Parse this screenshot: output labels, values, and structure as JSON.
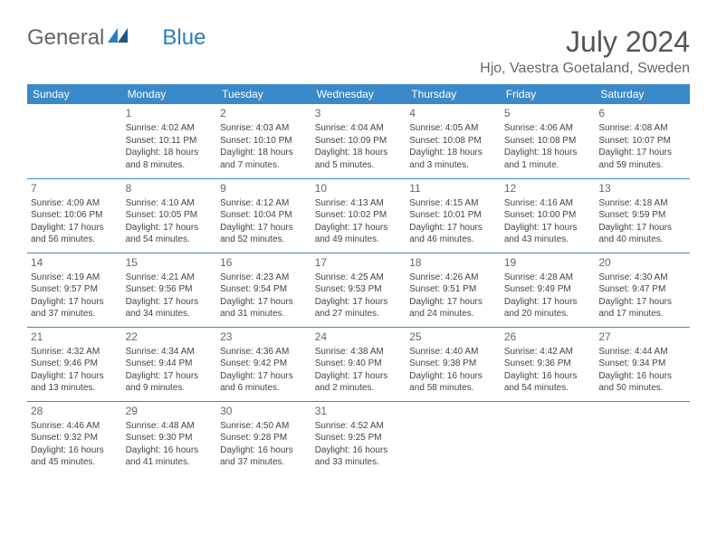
{
  "logo": {
    "part1": "General",
    "part2": "Blue"
  },
  "title": "July 2024",
  "location": "Hjo, Vaestra Goetaland, Sweden",
  "colors": {
    "header_bg": "#3a8ac9",
    "header_text": "#ffffff",
    "title_text": "#555555",
    "body_text": "#444444",
    "logo_gray": "#666666",
    "logo_blue": "#2a7fbf",
    "border": "#3a8ac9"
  },
  "dayHeaders": [
    "Sunday",
    "Monday",
    "Tuesday",
    "Wednesday",
    "Thursday",
    "Friday",
    "Saturday"
  ],
  "weeks": [
    [
      {},
      {
        "n": "1",
        "l1": "Sunrise: 4:02 AM",
        "l2": "Sunset: 10:11 PM",
        "l3": "Daylight: 18 hours",
        "l4": "and 8 minutes."
      },
      {
        "n": "2",
        "l1": "Sunrise: 4:03 AM",
        "l2": "Sunset: 10:10 PM",
        "l3": "Daylight: 18 hours",
        "l4": "and 7 minutes."
      },
      {
        "n": "3",
        "l1": "Sunrise: 4:04 AM",
        "l2": "Sunset: 10:09 PM",
        "l3": "Daylight: 18 hours",
        "l4": "and 5 minutes."
      },
      {
        "n": "4",
        "l1": "Sunrise: 4:05 AM",
        "l2": "Sunset: 10:08 PM",
        "l3": "Daylight: 18 hours",
        "l4": "and 3 minutes."
      },
      {
        "n": "5",
        "l1": "Sunrise: 4:06 AM",
        "l2": "Sunset: 10:08 PM",
        "l3": "Daylight: 18 hours",
        "l4": "and 1 minute."
      },
      {
        "n": "6",
        "l1": "Sunrise: 4:08 AM",
        "l2": "Sunset: 10:07 PM",
        "l3": "Daylight: 17 hours",
        "l4": "and 59 minutes."
      }
    ],
    [
      {
        "n": "7",
        "l1": "Sunrise: 4:09 AM",
        "l2": "Sunset: 10:06 PM",
        "l3": "Daylight: 17 hours",
        "l4": "and 56 minutes."
      },
      {
        "n": "8",
        "l1": "Sunrise: 4:10 AM",
        "l2": "Sunset: 10:05 PM",
        "l3": "Daylight: 17 hours",
        "l4": "and 54 minutes."
      },
      {
        "n": "9",
        "l1": "Sunrise: 4:12 AM",
        "l2": "Sunset: 10:04 PM",
        "l3": "Daylight: 17 hours",
        "l4": "and 52 minutes."
      },
      {
        "n": "10",
        "l1": "Sunrise: 4:13 AM",
        "l2": "Sunset: 10:02 PM",
        "l3": "Daylight: 17 hours",
        "l4": "and 49 minutes."
      },
      {
        "n": "11",
        "l1": "Sunrise: 4:15 AM",
        "l2": "Sunset: 10:01 PM",
        "l3": "Daylight: 17 hours",
        "l4": "and 46 minutes."
      },
      {
        "n": "12",
        "l1": "Sunrise: 4:16 AM",
        "l2": "Sunset: 10:00 PM",
        "l3": "Daylight: 17 hours",
        "l4": "and 43 minutes."
      },
      {
        "n": "13",
        "l1": "Sunrise: 4:18 AM",
        "l2": "Sunset: 9:59 PM",
        "l3": "Daylight: 17 hours",
        "l4": "and 40 minutes."
      }
    ],
    [
      {
        "n": "14",
        "l1": "Sunrise: 4:19 AM",
        "l2": "Sunset: 9:57 PM",
        "l3": "Daylight: 17 hours",
        "l4": "and 37 minutes."
      },
      {
        "n": "15",
        "l1": "Sunrise: 4:21 AM",
        "l2": "Sunset: 9:56 PM",
        "l3": "Daylight: 17 hours",
        "l4": "and 34 minutes."
      },
      {
        "n": "16",
        "l1": "Sunrise: 4:23 AM",
        "l2": "Sunset: 9:54 PM",
        "l3": "Daylight: 17 hours",
        "l4": "and 31 minutes."
      },
      {
        "n": "17",
        "l1": "Sunrise: 4:25 AM",
        "l2": "Sunset: 9:53 PM",
        "l3": "Daylight: 17 hours",
        "l4": "and 27 minutes."
      },
      {
        "n": "18",
        "l1": "Sunrise: 4:26 AM",
        "l2": "Sunset: 9:51 PM",
        "l3": "Daylight: 17 hours",
        "l4": "and 24 minutes."
      },
      {
        "n": "19",
        "l1": "Sunrise: 4:28 AM",
        "l2": "Sunset: 9:49 PM",
        "l3": "Daylight: 17 hours",
        "l4": "and 20 minutes."
      },
      {
        "n": "20",
        "l1": "Sunrise: 4:30 AM",
        "l2": "Sunset: 9:47 PM",
        "l3": "Daylight: 17 hours",
        "l4": "and 17 minutes."
      }
    ],
    [
      {
        "n": "21",
        "l1": "Sunrise: 4:32 AM",
        "l2": "Sunset: 9:46 PM",
        "l3": "Daylight: 17 hours",
        "l4": "and 13 minutes."
      },
      {
        "n": "22",
        "l1": "Sunrise: 4:34 AM",
        "l2": "Sunset: 9:44 PM",
        "l3": "Daylight: 17 hours",
        "l4": "and 9 minutes."
      },
      {
        "n": "23",
        "l1": "Sunrise: 4:36 AM",
        "l2": "Sunset: 9:42 PM",
        "l3": "Daylight: 17 hours",
        "l4": "and 6 minutes."
      },
      {
        "n": "24",
        "l1": "Sunrise: 4:38 AM",
        "l2": "Sunset: 9:40 PM",
        "l3": "Daylight: 17 hours",
        "l4": "and 2 minutes."
      },
      {
        "n": "25",
        "l1": "Sunrise: 4:40 AM",
        "l2": "Sunset: 9:38 PM",
        "l3": "Daylight: 16 hours",
        "l4": "and 58 minutes."
      },
      {
        "n": "26",
        "l1": "Sunrise: 4:42 AM",
        "l2": "Sunset: 9:36 PM",
        "l3": "Daylight: 16 hours",
        "l4": "and 54 minutes."
      },
      {
        "n": "27",
        "l1": "Sunrise: 4:44 AM",
        "l2": "Sunset: 9:34 PM",
        "l3": "Daylight: 16 hours",
        "l4": "and 50 minutes."
      }
    ],
    [
      {
        "n": "28",
        "l1": "Sunrise: 4:46 AM",
        "l2": "Sunset: 9:32 PM",
        "l3": "Daylight: 16 hours",
        "l4": "and 45 minutes."
      },
      {
        "n": "29",
        "l1": "Sunrise: 4:48 AM",
        "l2": "Sunset: 9:30 PM",
        "l3": "Daylight: 16 hours",
        "l4": "and 41 minutes."
      },
      {
        "n": "30",
        "l1": "Sunrise: 4:50 AM",
        "l2": "Sunset: 9:28 PM",
        "l3": "Daylight: 16 hours",
        "l4": "and 37 minutes."
      },
      {
        "n": "31",
        "l1": "Sunrise: 4:52 AM",
        "l2": "Sunset: 9:25 PM",
        "l3": "Daylight: 16 hours",
        "l4": "and 33 minutes."
      },
      {},
      {},
      {}
    ]
  ]
}
